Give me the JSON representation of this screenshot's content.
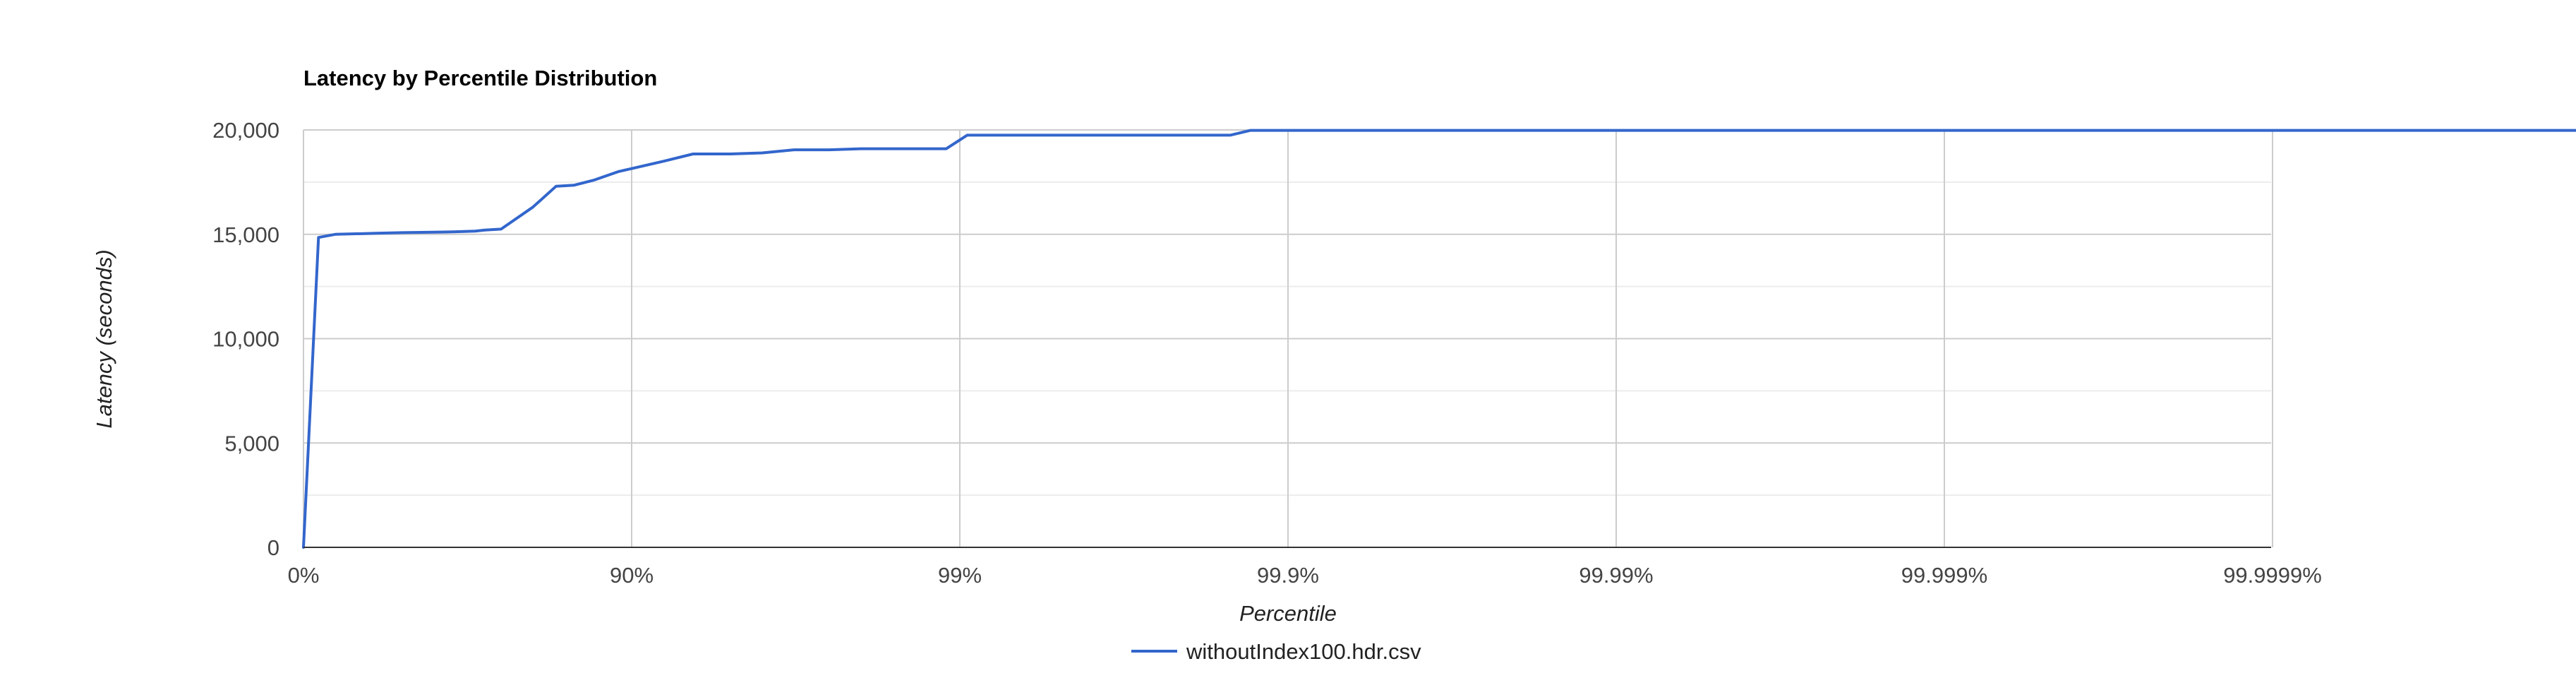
{
  "chart_data": {
    "type": "line",
    "title": "Latency by Percentile Distribution",
    "xlabel": "Percentile",
    "ylabel": "Latency (seconds)",
    "x_scale": "log-inverse-percentile",
    "x_ticks": [
      {
        "label": "0%",
        "value": 0
      },
      {
        "label": "90%",
        "value": 90
      },
      {
        "label": "99%",
        "value": 99
      },
      {
        "label": "99.9%",
        "value": 99.9
      },
      {
        "label": "99.99%",
        "value": 99.99
      },
      {
        "label": "99.999%",
        "value": 99.999
      },
      {
        "label": "99.9999%",
        "value": 99.9999
      }
    ],
    "y_ticks": [
      {
        "label": "0",
        "value": 0
      },
      {
        "label": "5,000",
        "value": 5000
      },
      {
        "label": "10,000",
        "value": 10000
      },
      {
        "label": "15,000",
        "value": 15000
      },
      {
        "label": "20,000",
        "value": 20000
      }
    ],
    "ylim": [
      0,
      20000
    ],
    "grid": true,
    "legend_position": "bottom",
    "series": [
      {
        "name": "withoutIndex100.hdr.csv",
        "color": "#3366cc",
        "points": [
          [
            0,
            0
          ],
          [
            10,
            14850
          ],
          [
            20,
            15000
          ],
          [
            40,
            15050
          ],
          [
            50,
            15080
          ],
          [
            60,
            15100
          ],
          [
            65,
            15120
          ],
          [
            70,
            15150
          ],
          [
            72,
            15200
          ],
          [
            75,
            15250
          ],
          [
            80,
            16300
          ],
          [
            83,
            17300
          ],
          [
            85,
            17350
          ],
          [
            87,
            17600
          ],
          [
            89,
            18000
          ],
          [
            90,
            18150
          ],
          [
            92,
            18500
          ],
          [
            93.5,
            18850
          ],
          [
            95,
            18850
          ],
          [
            96,
            18900
          ],
          [
            96.8,
            19050
          ],
          [
            97.5,
            19050
          ],
          [
            98,
            19100
          ],
          [
            98.5,
            19100
          ],
          [
            98.9,
            19100
          ],
          [
            99.05,
            19750
          ],
          [
            99.5,
            19750
          ],
          [
            99.8,
            19750
          ],
          [
            99.85,
            19750
          ],
          [
            99.87,
            19980
          ],
          [
            99.9,
            19980
          ],
          [
            99.999999,
            19980
          ]
        ]
      }
    ]
  }
}
